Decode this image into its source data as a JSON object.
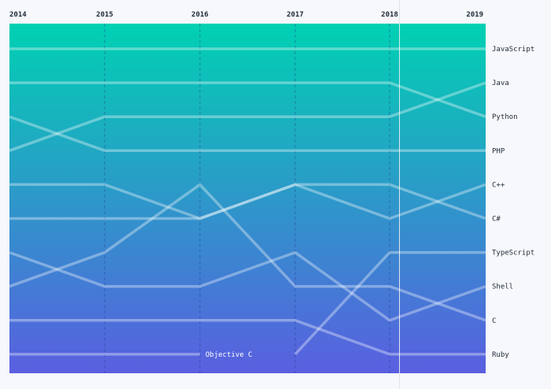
{
  "chart_data": {
    "type": "bump",
    "x": [
      "2014",
      "2015",
      "2016",
      "2017",
      "2018",
      "2019"
    ],
    "y_rank_range": [
      1,
      10
    ],
    "series": [
      {
        "name": "JavaScript",
        "ranks": [
          1,
          1,
          1,
          1,
          1,
          1
        ]
      },
      {
        "name": "Python",
        "ranks": [
          2,
          2,
          2,
          2,
          2,
          3
        ]
      },
      {
        "name": "Java",
        "ranks": [
          4,
          3,
          3,
          3,
          3,
          2
        ]
      },
      {
        "name": "PHP",
        "ranks": [
          3,
          4,
          4,
          4,
          4,
          4
        ]
      },
      {
        "name": "C#",
        "ranks": [
          5,
          5,
          6,
          5,
          5,
          6
        ]
      },
      {
        "name": "C++",
        "ranks": [
          6,
          6,
          6,
          5,
          6,
          5
        ]
      },
      {
        "name": "TypeScript",
        "ranks": [
          null,
          null,
          null,
          10,
          7,
          7
        ]
      },
      {
        "name": "Shell",
        "ranks": [
          7,
          8,
          8,
          7,
          9,
          8
        ]
      },
      {
        "name": "C",
        "ranks": [
          8,
          7,
          5,
          8,
          8,
          9
        ]
      },
      {
        "name": "Ruby",
        "ranks": [
          9,
          9,
          9,
          9,
          10,
          10
        ]
      },
      {
        "name": "Objective C",
        "ranks": [
          10,
          10,
          10,
          null,
          null,
          null
        ]
      }
    ],
    "grid": "dashed vertical year lines",
    "background_gradient": [
      "#00d1b2",
      "#5a5fe0"
    ]
  }
}
